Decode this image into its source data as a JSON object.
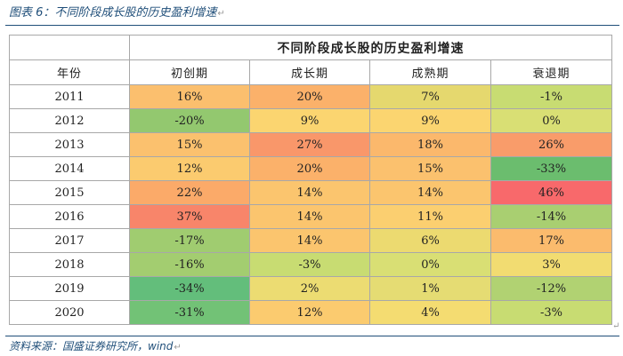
{
  "figure": {
    "title": "图表 6：不同阶段成长股的历史盈利增速",
    "source": "资料来源：国盛证券研究所，wind"
  },
  "table": {
    "group_header": "不同阶段成长股的历史盈利增速",
    "year_header": "年份",
    "columns": [
      "初创期",
      "成长期",
      "成熟期",
      "衰退期"
    ],
    "rows": [
      {
        "year": "2011",
        "cells": [
          {
            "text": "16%",
            "color": "#fbbf6e"
          },
          {
            "text": "20%",
            "color": "#fbb16a"
          },
          {
            "text": "7%",
            "color": "#e5d86e"
          },
          {
            "text": "-1%",
            "color": "#c8dc72"
          }
        ]
      },
      {
        "year": "2012",
        "cells": [
          {
            "text": "-20%",
            "color": "#93c86f"
          },
          {
            "text": "9%",
            "color": "#fbd570"
          },
          {
            "text": "9%",
            "color": "#fbd570"
          },
          {
            "text": "0%",
            "color": "#d9df74"
          }
        ]
      },
      {
        "year": "2013",
        "cells": [
          {
            "text": "15%",
            "color": "#fbc16e"
          },
          {
            "text": "27%",
            "color": "#f9976a"
          },
          {
            "text": "18%",
            "color": "#fbb86c"
          },
          {
            "text": "26%",
            "color": "#f99c6a"
          }
        ]
      },
      {
        "year": "2014",
        "cells": [
          {
            "text": "12%",
            "color": "#fbcb6f"
          },
          {
            "text": "20%",
            "color": "#fbb16a"
          },
          {
            "text": "15%",
            "color": "#fbc16e"
          },
          {
            "text": "-33%",
            "color": "#6bbd6e"
          }
        ]
      },
      {
        "year": "2015",
        "cells": [
          {
            "text": "22%",
            "color": "#fbaa69"
          },
          {
            "text": "14%",
            "color": "#fbc56e"
          },
          {
            "text": "14%",
            "color": "#fbc56e"
          },
          {
            "text": "46%",
            "color": "#f8696b"
          }
        ]
      },
      {
        "year": "2016",
        "cells": [
          {
            "text": "37%",
            "color": "#f8856a"
          },
          {
            "text": "14%",
            "color": "#fbc56e"
          },
          {
            "text": "11%",
            "color": "#fbcf70"
          },
          {
            "text": "-14%",
            "color": "#a9cf71"
          }
        ]
      },
      {
        "year": "2017",
        "cells": [
          {
            "text": "-17%",
            "color": "#a0cc70"
          },
          {
            "text": "14%",
            "color": "#fbc56e"
          },
          {
            "text": "6%",
            "color": "#ecda70"
          },
          {
            "text": "17%",
            "color": "#fbbb6d"
          }
        ]
      },
      {
        "year": "2018",
        "cells": [
          {
            "text": "-16%",
            "color": "#a3cd70"
          },
          {
            "text": "-3%",
            "color": "#c8dc72"
          },
          {
            "text": "0%",
            "color": "#d9df74"
          },
          {
            "text": "3%",
            "color": "#f2dc71"
          }
        ]
      },
      {
        "year": "2019",
        "cells": [
          {
            "text": "-34%",
            "color": "#63be7b"
          },
          {
            "text": "2%",
            "color": "#ecdc72"
          },
          {
            "text": "1%",
            "color": "#e5dc73"
          },
          {
            "text": "-12%",
            "color": "#b1d272"
          }
        ]
      },
      {
        "year": "2020",
        "cells": [
          {
            "text": "-31%",
            "color": "#72c276"
          },
          {
            "text": "12%",
            "color": "#fbcb6f"
          },
          {
            "text": "4%",
            "color": "#f4dc71"
          },
          {
            "text": "-3%",
            "color": "#c8dc72"
          }
        ]
      }
    ]
  }
}
